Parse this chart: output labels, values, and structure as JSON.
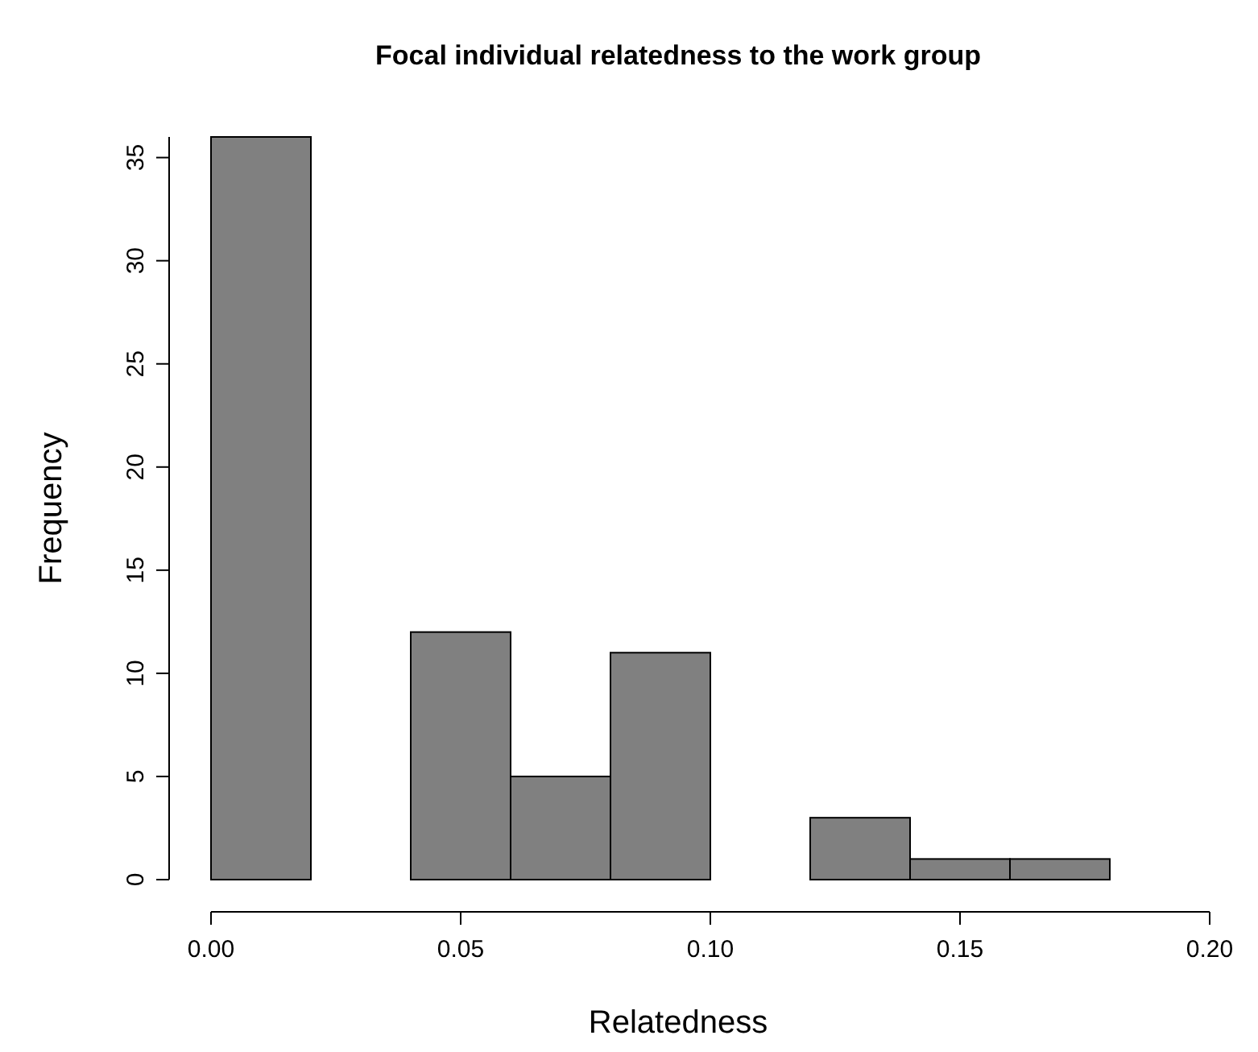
{
  "chart_data": {
    "type": "histogram",
    "title": "Focal individual relatedness to the work group",
    "xlabel": "Relatedness",
    "ylabel": "Frequency",
    "bins": [
      0,
      0.02,
      0.04,
      0.06,
      0.08,
      0.1,
      0.12,
      0.14,
      0.16,
      0.18
    ],
    "values": [
      36,
      0,
      12,
      5,
      11,
      0,
      3,
      1,
      1
    ],
    "color": "#808080",
    "xlim": [
      0,
      0.2
    ],
    "xticks": [
      {
        "value": 0,
        "label": "0.00"
      },
      {
        "value": 0.05,
        "label": "0.05"
      },
      {
        "value": 0.1,
        "label": "0.10"
      },
      {
        "value": 0.15,
        "label": "0.15"
      },
      {
        "value": 0.2,
        "label": "0.20"
      }
    ],
    "ylim": [
      0,
      36
    ],
    "yticks": [
      0,
      5,
      10,
      15,
      20,
      25,
      30,
      35
    ],
    "grid": false
  }
}
